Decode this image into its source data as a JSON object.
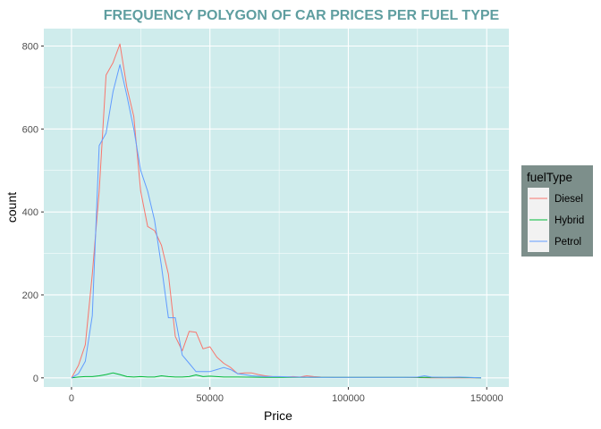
{
  "chart_data": {
    "type": "line",
    "title": "FREQUENCY POLYGON OF CAR PRICES PER FUEL TYPE",
    "xlabel": "Price",
    "ylabel": "count",
    "xlim": [
      -10000,
      158000
    ],
    "ylim": [
      -22,
      842
    ],
    "x_ticks": [
      0,
      50000,
      100000,
      150000
    ],
    "x_tick_labels": [
      "0",
      "50000",
      "100000",
      "150000"
    ],
    "y_ticks": [
      0,
      200,
      400,
      600,
      800
    ],
    "y_tick_labels": [
      "0",
      "200",
      "400",
      "600",
      "800"
    ],
    "grid": true,
    "legend": {
      "title": "fuelType",
      "position": "right"
    },
    "series": [
      {
        "name": "Diesel",
        "color": "#F8766D",
        "x": [
          0,
          2500,
          5000,
          7500,
          10000,
          12500,
          15000,
          17500,
          20000,
          22500,
          25000,
          27500,
          30000,
          32500,
          35000,
          37500,
          40000,
          42500,
          45000,
          47500,
          50000,
          52500,
          55000,
          57500,
          60000,
          62500,
          65000,
          67500,
          70000,
          72500,
          75000,
          77500,
          80000,
          82500,
          85000,
          87500,
          90000,
          95000,
          100000,
          110000,
          120000,
          130000,
          140000,
          148000
        ],
        "values": [
          0,
          30,
          80,
          250,
          450,
          730,
          760,
          805,
          700,
          630,
          450,
          365,
          355,
          320,
          250,
          100,
          65,
          112,
          110,
          70,
          75,
          50,
          35,
          25,
          10,
          12,
          12,
          8,
          5,
          3,
          2,
          2,
          3,
          2,
          5,
          3,
          2,
          1,
          1,
          1,
          1,
          0,
          0,
          0
        ]
      },
      {
        "name": "Hybrid",
        "color": "#00BA38",
        "x": [
          0,
          2500,
          5000,
          7500,
          10000,
          12500,
          15000,
          17500,
          20000,
          22500,
          25000,
          27500,
          30000,
          32500,
          35000,
          37500,
          40000,
          42500,
          45000,
          47500,
          50000,
          55000,
          60000,
          70000,
          80000,
          90000,
          100000,
          110000,
          120000,
          130000,
          140000,
          148000
        ],
        "values": [
          0,
          2,
          3,
          3,
          5,
          8,
          12,
          8,
          3,
          2,
          3,
          2,
          2,
          5,
          3,
          2,
          2,
          3,
          7,
          3,
          4,
          2,
          2,
          1,
          1,
          1,
          1,
          1,
          1,
          1,
          1,
          0
        ]
      },
      {
        "name": "Petrol",
        "color": "#619CFF",
        "x": [
          0,
          2500,
          5000,
          7500,
          10000,
          12500,
          15000,
          17500,
          20000,
          22500,
          25000,
          27500,
          30000,
          32500,
          35000,
          37500,
          40000,
          42500,
          45000,
          47500,
          50000,
          52500,
          55000,
          57500,
          60000,
          62500,
          65000,
          70000,
          75000,
          80000,
          90000,
          100000,
          110000,
          120000,
          125000,
          127500,
          130000,
          135000,
          140000,
          148000
        ],
        "values": [
          0,
          10,
          40,
          150,
          560,
          590,
          690,
          755,
          680,
          600,
          500,
          450,
          380,
          270,
          145,
          145,
          55,
          35,
          15,
          15,
          15,
          20,
          25,
          20,
          10,
          8,
          5,
          3,
          3,
          2,
          1,
          1,
          1,
          1,
          2,
          5,
          2,
          1,
          2,
          0
        ]
      }
    ]
  },
  "colors": {
    "title": "#5F9EA0",
    "panel_background": "#CFECEC",
    "grid": "#FFFFFF",
    "legend_background": "#7D8F8B",
    "legend_key_background": "#F2F2F2"
  }
}
